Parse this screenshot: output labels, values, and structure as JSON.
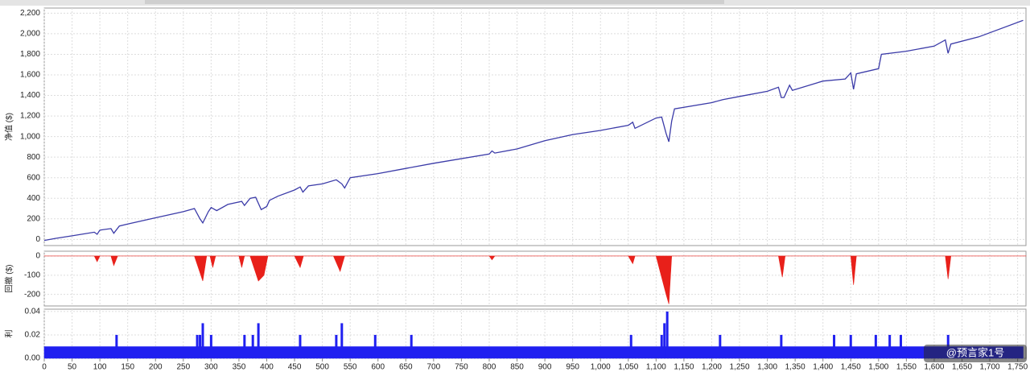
{
  "chart_data": [
    {
      "type": "line",
      "ylabel": "净值 ($)",
      "color": "#3b3ba8",
      "grid": true,
      "ylim": [
        -60,
        2250
      ],
      "yticks": [
        0,
        200,
        400,
        600,
        800,
        {
          "value": 1000,
          "label": "1,000"
        },
        {
          "value": 1200,
          "label": "1,200"
        },
        {
          "value": 1400,
          "label": "1,400"
        },
        {
          "value": 1600,
          "label": "1,600"
        },
        {
          "value": 1800,
          "label": "1,800"
        },
        {
          "value": 2000,
          "label": "2,000"
        },
        {
          "value": 2200,
          "label": "2,200"
        }
      ],
      "x": [
        0,
        20,
        50,
        90,
        95,
        100,
        120,
        125,
        135,
        150,
        200,
        250,
        270,
        280,
        285,
        295,
        300,
        310,
        330,
        355,
        360,
        370,
        380,
        390,
        400,
        405,
        420,
        450,
        460,
        465,
        475,
        500,
        525,
        535,
        540,
        550,
        600,
        650,
        700,
        800,
        805,
        810,
        850,
        900,
        950,
        1000,
        1050,
        1058,
        1062,
        1100,
        1110,
        1118,
        1123,
        1128,
        1133,
        1200,
        1220,
        1250,
        1300,
        1320,
        1325,
        1330,
        1340,
        1345,
        1400,
        1440,
        1450,
        1455,
        1460,
        1500,
        1505,
        1550,
        1600,
        1620,
        1625,
        1630,
        1680,
        1760
      ],
      "values": [
        -10,
        10,
        35,
        70,
        50,
        90,
        105,
        60,
        130,
        150,
        210,
        270,
        300,
        200,
        160,
        270,
        310,
        280,
        340,
        370,
        330,
        400,
        410,
        290,
        320,
        380,
        420,
        480,
        510,
        460,
        520,
        540,
        580,
        540,
        500,
        600,
        640,
        690,
        740,
        830,
        860,
        840,
        880,
        960,
        1020,
        1060,
        1110,
        1140,
        1080,
        1180,
        1190,
        1030,
        950,
        1150,
        1270,
        1330,
        1360,
        1390,
        1440,
        1480,
        1380,
        1380,
        1500,
        1450,
        1540,
        1560,
        1620,
        1460,
        1610,
        1660,
        1800,
        1830,
        1880,
        1940,
        1810,
        1900,
        1970,
        2130
      ]
    },
    {
      "type": "area",
      "ylabel": "回撤 ($)",
      "color": "#e8201a",
      "grid": true,
      "ylim": [
        -260,
        25
      ],
      "yticks": [
        -200,
        -100,
        0
      ],
      "x": [
        0,
        90,
        95,
        100,
        120,
        125,
        132,
        270,
        285,
        292,
        298,
        303,
        308,
        350,
        355,
        360,
        370,
        385,
        395,
        402,
        450,
        460,
        466,
        520,
        532,
        540,
        800,
        805,
        810,
        1050,
        1058,
        1062,
        1100,
        1118,
        1123,
        1128,
        1320,
        1327,
        1332,
        1450,
        1455,
        1460,
        1620,
        1625,
        1630,
        1765
      ],
      "values": [
        0,
        0,
        -30,
        0,
        0,
        -50,
        0,
        0,
        -130,
        0,
        0,
        -60,
        0,
        0,
        -60,
        0,
        0,
        -130,
        -100,
        0,
        0,
        -60,
        0,
        0,
        -80,
        0,
        0,
        -20,
        0,
        0,
        -40,
        0,
        0,
        -200,
        -250,
        0,
        0,
        -110,
        0,
        0,
        -150,
        0,
        0,
        -120,
        0,
        0
      ]
    },
    {
      "type": "bar",
      "ylabel": "利",
      "grid": true,
      "xlim": [
        0,
        1765
      ],
      "xticks": [
        0,
        50,
        100,
        150,
        200,
        250,
        300,
        350,
        400,
        450,
        500,
        550,
        600,
        650,
        700,
        750,
        800,
        850,
        900,
        950,
        {
          "value": 1000,
          "label": "1,000"
        },
        {
          "value": 1050,
          "label": "1,050"
        },
        {
          "value": 1100,
          "label": "1,100"
        },
        {
          "value": 1150,
          "label": "1,150"
        },
        {
          "value": 1200,
          "label": "1,200"
        },
        {
          "value": 1250,
          "label": "1,250"
        },
        {
          "value": 1300,
          "label": "1,300"
        },
        {
          "value": 1350,
          "label": "1,350"
        },
        {
          "value": 1400,
          "label": "1,400"
        },
        {
          "value": 1450,
          "label": "1,450"
        },
        {
          "value": 1500,
          "label": "1,500"
        },
        {
          "value": 1550,
          "label": "1,550"
        },
        {
          "value": 1600,
          "label": "1,600"
        },
        {
          "value": 1650,
          "label": "1,650"
        },
        {
          "value": 1700,
          "label": "1,700"
        },
        {
          "value": 1750,
          "label": "1,750"
        }
      ],
      "ylim": [
        0,
        0.042
      ],
      "yticks": [
        {
          "value": 0,
          "label": "0.00"
        },
        {
          "value": 0.02,
          "label": "0.02"
        },
        {
          "value": 0.04,
          "label": "0.04"
        }
      ],
      "series": [
        {
          "type": "area",
          "color": "#2020f0",
          "x": [
            0,
            1760
          ],
          "values": [
            0.01,
            0.01
          ]
        },
        {
          "type": "bar",
          "color": "#2020f0",
          "x": [
            130,
            275,
            280,
            285,
            300,
            360,
            375,
            385,
            460,
            525,
            535,
            595,
            660,
            1055,
            1110,
            1115,
            1120,
            1215,
            1325,
            1420,
            1450,
            1495,
            1520,
            1540,
            1625
          ],
          "values": [
            0.02,
            0.02,
            0.02,
            0.03,
            0.02,
            0.02,
            0.02,
            0.03,
            0.02,
            0.02,
            0.03,
            0.02,
            0.02,
            0.02,
            0.02,
            0.03,
            0.04,
            0.02,
            0.02,
            0.02,
            0.02,
            0.02,
            0.02,
            0.02,
            0.02
          ]
        }
      ]
    }
  ],
  "watermark": "@预言家1号"
}
